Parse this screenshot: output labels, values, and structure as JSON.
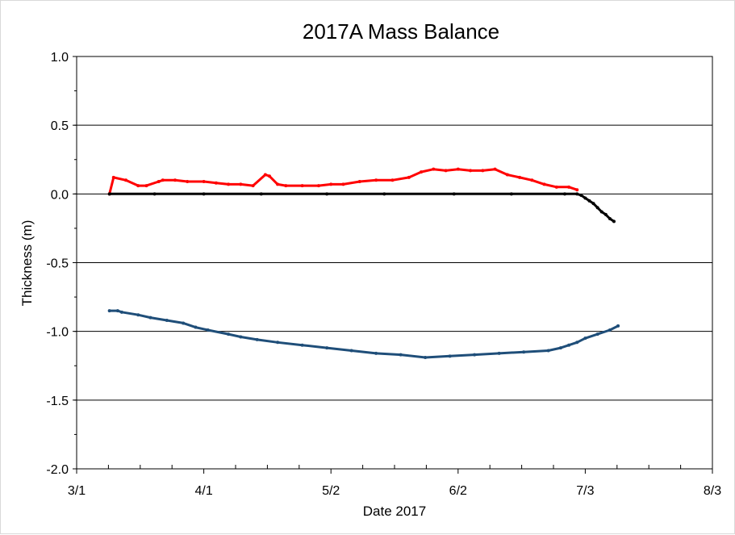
{
  "chart_data": {
    "type": "scatter",
    "title": "2017A  Mass Balance",
    "xlabel": "Date 2017",
    "ylabel": "Thickness (m)",
    "x_tick_labels": [
      "3/1",
      "4/1",
      "5/2",
      "6/2",
      "7/3",
      "8/3"
    ],
    "x_ticks_dates": [
      "2017-03-01",
      "2017-04-01",
      "2017-05-02",
      "2017-06-02",
      "2017-07-03",
      "2017-08-03"
    ],
    "xlim": [
      "2017-03-01",
      "2017-08-03"
    ],
    "y_tick_labels": [
      "1.0",
      "0.5",
      "0.0",
      "-0.5",
      "-1.0",
      "-1.5",
      "-2.0"
    ],
    "y_ticks": [
      1.0,
      0.5,
      0.0,
      -0.5,
      -1.0,
      -1.5,
      -2.0
    ],
    "ylim": [
      -2.0,
      1.0
    ],
    "grid": "horizontal",
    "legend": "none",
    "series": [
      {
        "color": "#ff0000",
        "marker": "dot",
        "x": [
          "2017-03-09",
          "2017-03-10",
          "2017-03-13",
          "2017-03-16",
          "2017-03-18",
          "2017-03-21",
          "2017-03-22",
          "2017-03-25",
          "2017-03-28",
          "2017-04-01",
          "2017-04-04",
          "2017-04-07",
          "2017-04-10",
          "2017-04-13",
          "2017-04-16",
          "2017-04-17",
          "2017-04-19",
          "2017-04-21",
          "2017-04-25",
          "2017-04-29",
          "2017-05-02",
          "2017-05-05",
          "2017-05-09",
          "2017-05-13",
          "2017-05-17",
          "2017-05-21",
          "2017-05-24",
          "2017-05-27",
          "2017-05-30",
          "2017-06-02",
          "2017-06-05",
          "2017-06-08",
          "2017-06-11",
          "2017-06-14",
          "2017-06-17",
          "2017-06-20",
          "2017-06-23",
          "2017-06-26",
          "2017-06-29",
          "2017-07-01"
        ],
        "y": [
          0.0,
          0.12,
          0.1,
          0.06,
          0.06,
          0.09,
          0.1,
          0.1,
          0.09,
          0.09,
          0.08,
          0.07,
          0.07,
          0.06,
          0.14,
          0.13,
          0.07,
          0.06,
          0.06,
          0.06,
          0.07,
          0.07,
          0.09,
          0.1,
          0.1,
          0.12,
          0.16,
          0.18,
          0.17,
          0.18,
          0.17,
          0.17,
          0.18,
          0.14,
          0.12,
          0.1,
          0.07,
          0.05,
          0.05,
          0.03
        ]
      },
      {
        "color": "#000000",
        "marker": "dot",
        "x": [
          "2017-03-09",
          "2017-03-20",
          "2017-04-01",
          "2017-04-15",
          "2017-05-01",
          "2017-05-15",
          "2017-06-01",
          "2017-06-15",
          "2017-06-28",
          "2017-07-01",
          "2017-07-02",
          "2017-07-03",
          "2017-07-04",
          "2017-07-05",
          "2017-07-06",
          "2017-07-07",
          "2017-07-08",
          "2017-07-09",
          "2017-07-10"
        ],
        "y": [
          0.0,
          0.0,
          0.0,
          0.0,
          0.0,
          0.0,
          0.0,
          0.0,
          0.0,
          0.0,
          -0.01,
          -0.03,
          -0.05,
          -0.07,
          -0.1,
          -0.13,
          -0.15,
          -0.18,
          -0.2
        ]
      },
      {
        "color": "#1f4e79",
        "marker": "dot",
        "x": [
          "2017-03-09",
          "2017-03-11",
          "2017-03-12",
          "2017-03-16",
          "2017-03-19",
          "2017-03-23",
          "2017-03-27",
          "2017-03-30",
          "2017-04-02",
          "2017-04-07",
          "2017-04-10",
          "2017-04-14",
          "2017-04-19",
          "2017-04-25",
          "2017-05-01",
          "2017-05-07",
          "2017-05-13",
          "2017-05-19",
          "2017-05-25",
          "2017-05-31",
          "2017-06-06",
          "2017-06-12",
          "2017-06-18",
          "2017-06-24",
          "2017-06-27",
          "2017-06-29",
          "2017-07-01",
          "2017-07-03",
          "2017-07-06",
          "2017-07-09",
          "2017-07-11"
        ],
        "y": [
          -0.85,
          -0.85,
          -0.86,
          -0.88,
          -0.9,
          -0.92,
          -0.94,
          -0.97,
          -0.99,
          -1.02,
          -1.04,
          -1.06,
          -1.08,
          -1.1,
          -1.12,
          -1.14,
          -1.16,
          -1.17,
          -1.19,
          -1.18,
          -1.17,
          -1.16,
          -1.15,
          -1.14,
          -1.12,
          -1.1,
          -1.08,
          -1.05,
          -1.02,
          -0.99,
          -0.96
        ]
      }
    ]
  }
}
